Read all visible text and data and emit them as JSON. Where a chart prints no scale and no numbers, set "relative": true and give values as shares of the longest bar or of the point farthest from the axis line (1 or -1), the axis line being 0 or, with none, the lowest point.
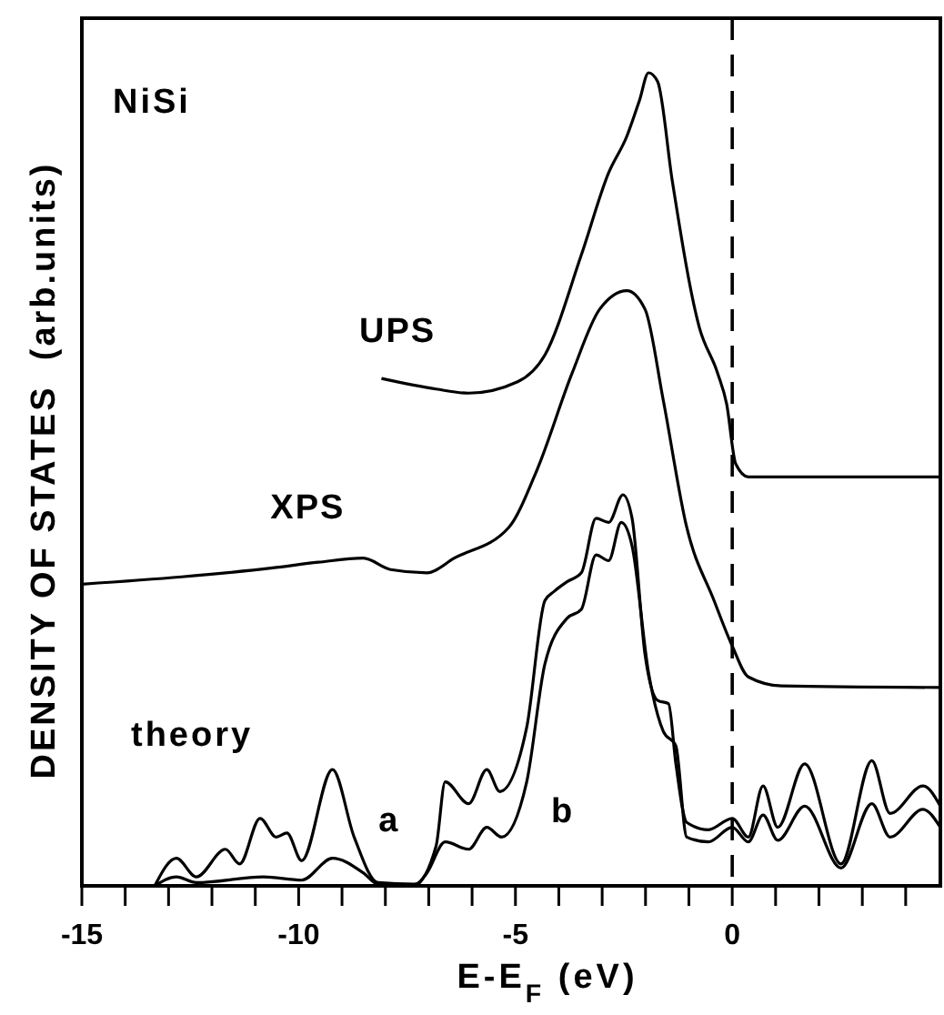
{
  "chart_data": {
    "type": "line",
    "relative": true,
    "xlabel": "E-E$_{F}$  (eV)",
    "ylabel": "DENSITY OF STATES  (arb.units)",
    "annotations": [
      "NiSi",
      "theory"
    ],
    "xlim": [
      -15,
      4.8
    ],
    "xticks": [
      -15,
      {
        "value": -14,
        "label": null
      },
      {
        "value": -13,
        "label": null
      },
      {
        "value": -12,
        "label": null
      },
      {
        "value": -11,
        "label": null
      },
      -10,
      {
        "value": -9,
        "label": null
      },
      {
        "value": -8,
        "label": null
      },
      {
        "value": -7,
        "label": null
      },
      {
        "value": -6,
        "label": null
      },
      -5,
      {
        "value": -4,
        "label": null
      },
      {
        "value": -3,
        "label": null
      },
      {
        "value": -2,
        "label": null
      },
      {
        "value": -1,
        "label": null
      },
      0,
      {
        "value": 1,
        "label": null
      },
      {
        "value": 2,
        "label": null
      },
      {
        "value": 3,
        "label": null
      },
      {
        "value": 4,
        "label": null
      }
    ],
    "ref_lines": [
      {
        "axis": "x",
        "value": 0,
        "color": "#000000",
        "line_style": "dashed"
      }
    ],
    "grid": false,
    "marker": "none",
    "line_style": "solid",
    "series": [
      {
        "name": "UPS",
        "color": "#000000",
        "x": [
          -8.09,
          -6.83,
          -6.08,
          -4.95,
          -4.32,
          -3.48,
          -2.85,
          -2.43,
          -2.14,
          -1.93,
          -1.72,
          -1.38,
          -0.76,
          -0.34,
          -0.13,
          0.08,
          0.37,
          4.8
        ],
        "values": [
          0.624,
          0.611,
          0.606,
          0.62,
          0.653,
          0.776,
          0.877,
          0.922,
          0.966,
          1.0,
          0.989,
          0.866,
          0.687,
          0.631,
          0.593,
          0.519,
          0.503,
          0.503
        ]
      },
      {
        "name": "XPS",
        "color": "#000000",
        "x": [
          -15,
          -12.7,
          -10.6,
          -9.55,
          -8.51,
          -7.88,
          -7.04,
          -6.41,
          -5.15,
          -4.53,
          -3.69,
          -3.06,
          -2.43,
          -2.01,
          -1.59,
          -1.05,
          -0.42,
          0,
          0.37,
          1.13,
          4.8
        ],
        "values": [
          0.371,
          0.38,
          0.391,
          0.398,
          0.403,
          0.389,
          0.385,
          0.403,
          0.441,
          0.508,
          0.631,
          0.709,
          0.732,
          0.709,
          0.597,
          0.441,
          0.351,
          0.295,
          0.257,
          0.246,
          0.244
        ]
      },
      {
        "name": "a",
        "color": "#000000",
        "x": [
          -13.32,
          -12.82,
          -12.36,
          -11.69,
          -11.36,
          -10.89,
          -10.52,
          -10.27,
          -9.93,
          -9.22,
          -8.72,
          -8.17,
          -7.33,
          -6.83,
          -6.62,
          -6.08,
          -5.66,
          -5.36,
          -4.74,
          -4.32,
          -4.11,
          -3.81,
          -3.48,
          -3.14,
          -2.85,
          -2.52,
          -2.31,
          -2.01,
          -1.72,
          -1.47,
          -1.3,
          -1.05,
          -0.55,
          0,
          0.37,
          0.71,
          1.05,
          1.67,
          2.51,
          3.22,
          3.64,
          4.4,
          4.8
        ],
        "values": [
          0,
          0.034,
          0.011,
          0.045,
          0.027,
          0.083,
          0.06,
          0.065,
          0.031,
          0.143,
          0.06,
          0.004,
          0.002,
          0.049,
          0.128,
          0.101,
          0.143,
          0.116,
          0.195,
          0.351,
          0.362,
          0.374,
          0.385,
          0.452,
          0.447,
          0.481,
          0.452,
          0.284,
          0.228,
          0.224,
          0.15,
          0.078,
          0.069,
          0.083,
          0.06,
          0.123,
          0.072,
          0.15,
          0.027,
          0.154,
          0.089,
          0.123,
          0.098
        ]
      },
      {
        "name": "b",
        "color": "#000000",
        "x": [
          -13.32,
          -12.82,
          -12.36,
          -10.81,
          -9.93,
          -9.22,
          -8.51,
          -8.17,
          -7.33,
          -7.04,
          -6.62,
          -6.08,
          -5.66,
          -5.32,
          -4.74,
          -4.32,
          -3.81,
          -3.48,
          -3.14,
          -2.85,
          -2.56,
          -2.31,
          -1.93,
          -1.59,
          -1.3,
          -1.05,
          -0.55,
          0,
          0.37,
          0.71,
          1.05,
          1.67,
          2.51,
          3.22,
          3.64,
          4.4,
          4.8
        ],
        "values": [
          0,
          0.011,
          0.004,
          0.011,
          0.007,
          0.034,
          0.016,
          0.002,
          0,
          0.016,
          0.054,
          0.045,
          0.072,
          0.06,
          0.128,
          0.273,
          0.329,
          0.34,
          0.407,
          0.4,
          0.447,
          0.418,
          0.262,
          0.19,
          0.172,
          0.06,
          0.054,
          0.072,
          0.054,
          0.087,
          0.056,
          0.098,
          0.022,
          0.101,
          0.06,
          0.094,
          0.072
        ]
      }
    ]
  }
}
